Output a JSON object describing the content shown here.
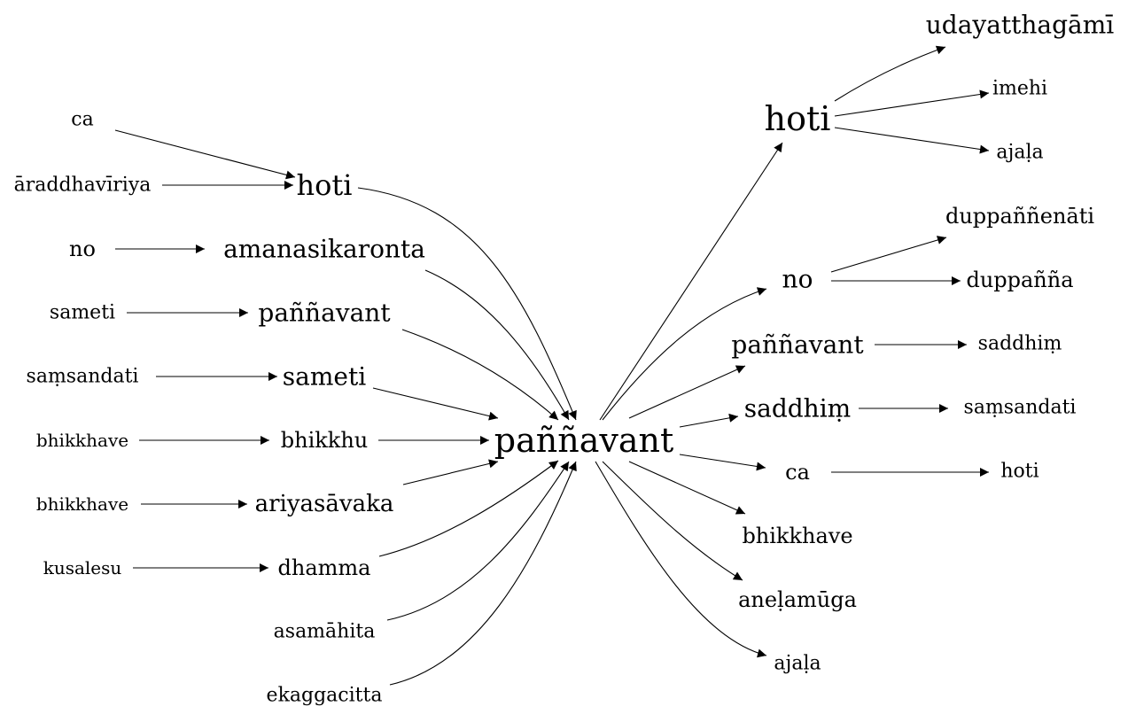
{
  "graph": {
    "center": "paññavant",
    "nodes": {
      "center": "paññavant",
      "l_ca": "ca",
      "l_araddhaviriya": "āraddhavīriya",
      "l_hoti": "hoti",
      "l_no": "no",
      "l_amanasikaronta": "amanasikaronta",
      "l_sameti": "sameti",
      "l_pannavant": "paññavant",
      "l_samsandati": "saṃsandati",
      "l_sameti2": "sameti",
      "l_bhikkhave1": "bhikkhave",
      "l_bhikkhu": "bhikkhu",
      "l_bhikkhave2": "bhikkhave",
      "l_ariyasavaka": "ariyasāvaka",
      "l_kusalesu": "kusalesu",
      "l_dhamma": "dhamma",
      "l_asamahita": "asamāhita",
      "l_ekaggacitta": "ekaggacitta",
      "r_hoti": "hoti",
      "r_udayatthagami": "udayatthagāmī",
      "r_imehi": "imehi",
      "r_ajala1": "ajaḷa",
      "r_no": "no",
      "r_duppannenati": "duppaññenāti",
      "r_duppanna": "duppañña",
      "r_pannavant": "paññavant",
      "r_saddhim1": "saddhiṃ",
      "r_saddhim2": "saddhiṃ",
      "r_samsandati": "saṃsandati",
      "r_ca": "ca",
      "r_hoti2": "hoti",
      "r_bhikkhave": "bhikkhave",
      "r_anelamuga": "aneḷamūga",
      "r_ajala2": "ajaḷa"
    },
    "edges": [
      [
        "l_ca",
        "l_hoti"
      ],
      [
        "l_araddhaviriya",
        "l_hoti"
      ],
      [
        "l_hoti",
        "center"
      ],
      [
        "l_no",
        "l_amanasikaronta"
      ],
      [
        "l_amanasikaronta",
        "center"
      ],
      [
        "l_sameti",
        "l_pannavant"
      ],
      [
        "l_pannavant",
        "center"
      ],
      [
        "l_samsandati",
        "l_sameti2"
      ],
      [
        "l_sameti2",
        "center"
      ],
      [
        "l_bhikkhave1",
        "l_bhikkhu"
      ],
      [
        "l_bhikkhu",
        "center"
      ],
      [
        "l_bhikkhave2",
        "l_ariyasavaka"
      ],
      [
        "l_ariyasavaka",
        "center"
      ],
      [
        "l_kusalesu",
        "l_dhamma"
      ],
      [
        "l_dhamma",
        "center"
      ],
      [
        "l_asamahita",
        "center"
      ],
      [
        "l_ekaggacitta",
        "center"
      ],
      [
        "center",
        "r_hoti"
      ],
      [
        "r_hoti",
        "r_udayatthagami"
      ],
      [
        "r_hoti",
        "r_imehi"
      ],
      [
        "r_hoti",
        "r_ajala1"
      ],
      [
        "center",
        "r_no"
      ],
      [
        "r_no",
        "r_duppannenati"
      ],
      [
        "r_no",
        "r_duppanna"
      ],
      [
        "center",
        "r_pannavant"
      ],
      [
        "r_pannavant",
        "r_saddhim1"
      ],
      [
        "center",
        "r_saddhim2"
      ],
      [
        "r_saddhim2",
        "r_samsandati"
      ],
      [
        "center",
        "r_ca"
      ],
      [
        "r_ca",
        "r_hoti2"
      ],
      [
        "center",
        "r_bhikkhave"
      ],
      [
        "center",
        "r_anelamuga"
      ],
      [
        "center",
        "r_ajala2"
      ]
    ]
  }
}
